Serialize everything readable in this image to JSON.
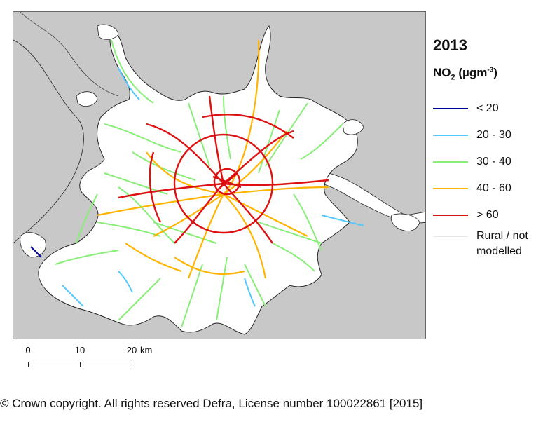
{
  "map": {
    "year": "2013",
    "pollutant": "NO",
    "pollutant_subscript": "2",
    "unit_prefix": "(µgm",
    "unit_exponent": "-3",
    "unit_suffix": ")",
    "colors": {
      "background": "#c8c8c8",
      "land_modelled": "#ffffff",
      "boundary": "#222222",
      "lt20": "#000099",
      "c20_30": "#55c8ff",
      "c30_40": "#88ee77",
      "c40_60": "#ffb400",
      "gt60": "#dd1111"
    },
    "legend": [
      {
        "label": "< 20",
        "color": "#000099"
      },
      {
        "label": "20 - 30",
        "color": "#55c8ff"
      },
      {
        "label": "30 - 40",
        "color": "#88ee77"
      },
      {
        "label": "40 - 60",
        "color": "#ffb400"
      },
      {
        "label": "> 60",
        "color": "#dd1111"
      },
      {
        "label_line1": "Rural / not",
        "label_line2": "modelled",
        "color": "#e8e8e8"
      }
    ],
    "scale": {
      "labels": [
        "0",
        "10",
        "20"
      ],
      "unit": "km"
    },
    "copyright": "© Crown copyright.  All rights reserved Defra, License number 100022861 [2015]"
  }
}
